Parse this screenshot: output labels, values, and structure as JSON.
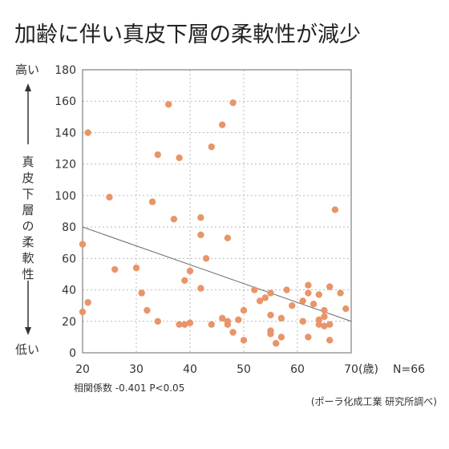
{
  "chart_data": {
    "type": "scatter",
    "title": "加齢に伴い真皮下層の柔軟性が減少",
    "xlabel": "(歳)",
    "ylabel": "真皮下層の柔軟性",
    "y_high_label": "高い",
    "y_low_label": "低い",
    "xlim": [
      20,
      70
    ],
    "ylim": [
      0,
      180
    ],
    "xticks": [
      20,
      30,
      40,
      50,
      60,
      70
    ],
    "yticks": [
      0,
      20,
      40,
      60,
      80,
      100,
      120,
      140,
      160,
      180
    ],
    "grid": true,
    "sample_size": "N=66",
    "stats_note": "相関係数 -0.401  P<0.05",
    "source": "(ポーラ化成工業 研究所調べ)",
    "colors": {
      "point": "#e8956a",
      "trend": "#666666",
      "grid": "#bbbbbb",
      "axis": "#666666"
    },
    "trendline": {
      "x": [
        20,
        70
      ],
      "y": [
        80,
        20
      ]
    },
    "points": [
      {
        "x": 20,
        "y": 69
      },
      {
        "x": 20,
        "y": 26
      },
      {
        "x": 21,
        "y": 140
      },
      {
        "x": 21,
        "y": 32
      },
      {
        "x": 25,
        "y": 99
      },
      {
        "x": 26,
        "y": 53
      },
      {
        "x": 30,
        "y": 54
      },
      {
        "x": 31,
        "y": 38
      },
      {
        "x": 32,
        "y": 27
      },
      {
        "x": 33,
        "y": 96
      },
      {
        "x": 34,
        "y": 126
      },
      {
        "x": 34,
        "y": 20
      },
      {
        "x": 36,
        "y": 158
      },
      {
        "x": 37,
        "y": 85
      },
      {
        "x": 38,
        "y": 124
      },
      {
        "x": 38,
        "y": 18
      },
      {
        "x": 39,
        "y": 46
      },
      {
        "x": 39,
        "y": 18
      },
      {
        "x": 40,
        "y": 52
      },
      {
        "x": 40,
        "y": 19
      },
      {
        "x": 42,
        "y": 86
      },
      {
        "x": 42,
        "y": 75
      },
      {
        "x": 42,
        "y": 41
      },
      {
        "x": 43,
        "y": 60
      },
      {
        "x": 44,
        "y": 131
      },
      {
        "x": 44,
        "y": 18
      },
      {
        "x": 46,
        "y": 145
      },
      {
        "x": 46,
        "y": 22
      },
      {
        "x": 47,
        "y": 73
      },
      {
        "x": 47,
        "y": 20
      },
      {
        "x": 47,
        "y": 18
      },
      {
        "x": 48,
        "y": 159
      },
      {
        "x": 48,
        "y": 13
      },
      {
        "x": 49,
        "y": 21
      },
      {
        "x": 50,
        "y": 27
      },
      {
        "x": 50,
        "y": 8
      },
      {
        "x": 52,
        "y": 40
      },
      {
        "x": 53,
        "y": 33
      },
      {
        "x": 54,
        "y": 35
      },
      {
        "x": 55,
        "y": 38
      },
      {
        "x": 55,
        "y": 24
      },
      {
        "x": 55,
        "y": 14
      },
      {
        "x": 55,
        "y": 12
      },
      {
        "x": 56,
        "y": 6
      },
      {
        "x": 57,
        "y": 22
      },
      {
        "x": 57,
        "y": 10
      },
      {
        "x": 58,
        "y": 40
      },
      {
        "x": 61,
        "y": 33
      },
      {
        "x": 61,
        "y": 20
      },
      {
        "x": 62,
        "y": 43
      },
      {
        "x": 62,
        "y": 38
      },
      {
        "x": 62,
        "y": 10
      },
      {
        "x": 63,
        "y": 31
      },
      {
        "x": 64,
        "y": 37
      },
      {
        "x": 64,
        "y": 21
      },
      {
        "x": 64,
        "y": 18
      },
      {
        "x": 65,
        "y": 27
      },
      {
        "x": 65,
        "y": 23
      },
      {
        "x": 65,
        "y": 17
      },
      {
        "x": 66,
        "y": 42
      },
      {
        "x": 66,
        "y": 18
      },
      {
        "x": 66,
        "y": 8
      },
      {
        "x": 67,
        "y": 91
      },
      {
        "x": 68,
        "y": 38
      },
      {
        "x": 69,
        "y": 28
      },
      {
        "x": 59,
        "y": 30
      }
    ]
  }
}
